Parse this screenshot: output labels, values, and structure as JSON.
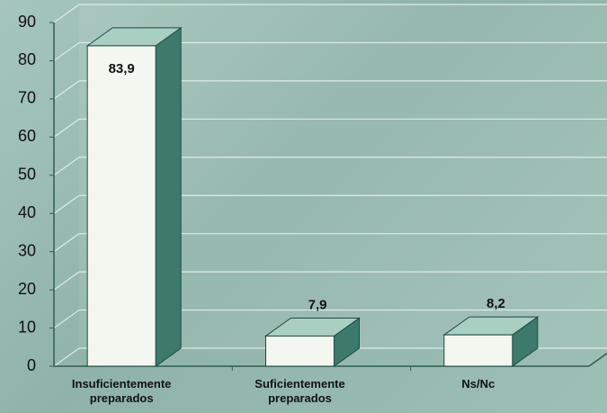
{
  "chart_data": {
    "type": "bar3d",
    "categories": [
      "Insuficientemente preparados",
      "Suficientemente preparados",
      "Ns/Nc"
    ],
    "values": [
      83.9,
      7.9,
      8.2
    ],
    "value_labels": [
      "83,9",
      "7,9",
      "8,2"
    ],
    "color": "#f4f7ef",
    "ylim": [
      0,
      90
    ],
    "yticks": [
      0,
      10,
      20,
      30,
      40,
      50,
      60,
      70,
      80,
      90
    ],
    "grid": true
  }
}
